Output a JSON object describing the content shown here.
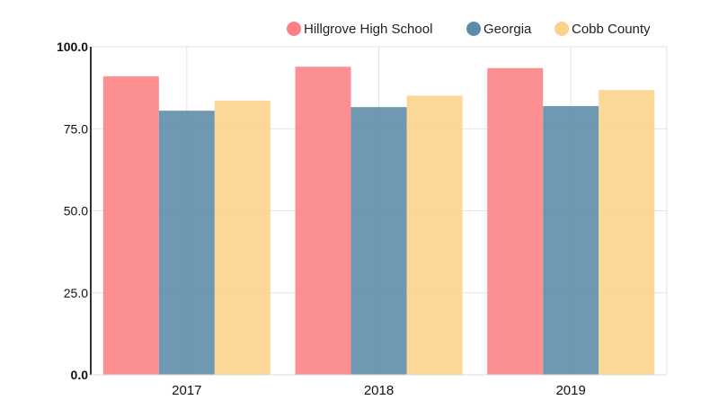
{
  "chart_data": {
    "type": "bar",
    "categories": [
      "2017",
      "2018",
      "2019"
    ],
    "series": [
      {
        "name": "Hillgrove High School",
        "color": "#fc8083",
        "values": [
          91.0,
          93.9,
          93.5
        ]
      },
      {
        "name": "Georgia",
        "color": "#5b8ba9",
        "values": [
          80.5,
          81.6,
          81.9
        ]
      },
      {
        "name": "Cobb County",
        "color": "#fbd28a",
        "values": [
          83.6,
          85.1,
          86.8
        ]
      }
    ],
    "ylim": [
      0,
      100
    ],
    "yticks": [
      "0.0",
      "25.0",
      "50.0",
      "75.0",
      "100.0"
    ],
    "legend": "top-right",
    "grid": true
  }
}
